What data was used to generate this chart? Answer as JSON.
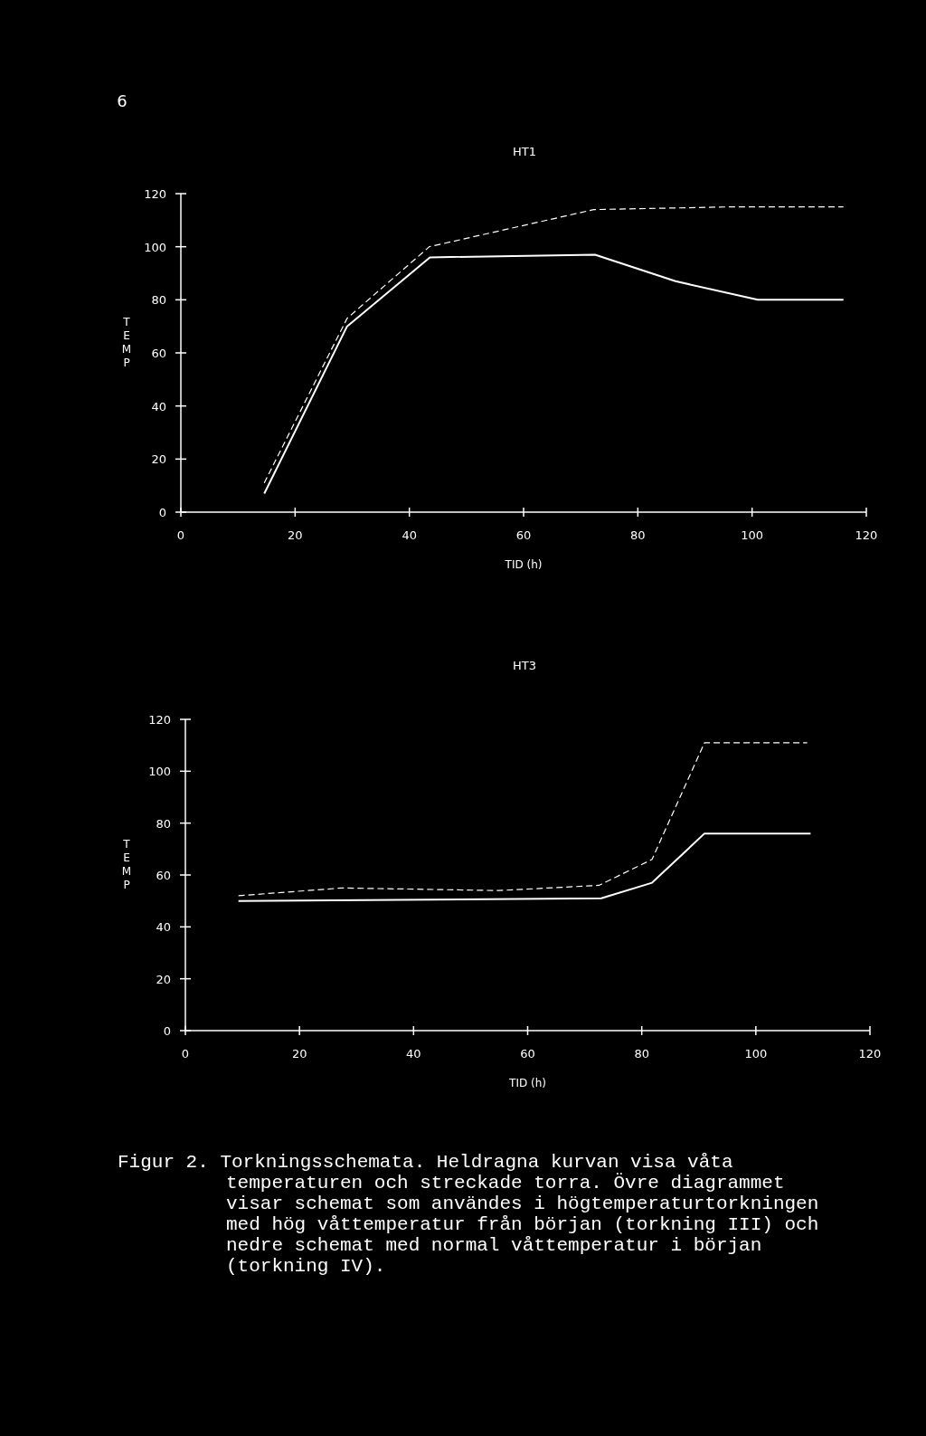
{
  "chart_data": [
    {
      "type": "line",
      "title": "HT1",
      "xlabel": "TID (h)",
      "ylabel": "TEMP",
      "xlim": [
        0,
        120
      ],
      "ylim": [
        0,
        120
      ],
      "xticks": [
        0,
        20,
        40,
        60,
        80,
        100,
        120
      ],
      "yticks": [
        0,
        20,
        40,
        60,
        80,
        100,
        120
      ],
      "annotations": [
        "6"
      ],
      "series": [
        {
          "color": "#ffffff",
          "line_style": "solid",
          "x": [
            14.6,
            29.1,
            43.6,
            72.5,
            86.6,
            101,
            116
          ],
          "values": [
            7,
            70,
            96,
            97,
            87,
            80,
            80
          ]
        },
        {
          "color": "#ffffff",
          "line_style": "dashed",
          "x": [
            14.6,
            29.1,
            43.5,
            72.3,
            96,
            116
          ],
          "values": [
            11,
            73,
            100,
            114,
            115,
            115
          ]
        }
      ]
    },
    {
      "type": "line",
      "title": "HT3",
      "xlabel": "TID (h)",
      "ylabel": "TEMP",
      "xlim": [
        0,
        120
      ],
      "ylim": [
        0,
        120
      ],
      "xticks": [
        0,
        20,
        40,
        60,
        80,
        100,
        120
      ],
      "yticks": [
        0,
        20,
        40,
        60,
        80,
        100,
        120
      ],
      "annotations": [
        "Figur 2. Torkningsschemata. Heldragna kurvan visa våta temperaturen och streckade torra. Övre diagrammet visar schemat som användes i högtemperaturtorkningen med hög våttemperatur från början (torkning III) och nedre schemat med normal våttemperatur i början (torkning IV)."
      ],
      "series": [
        {
          "color": "#ffffff",
          "line_style": "solid",
          "x": [
            9.3,
            72.9,
            81.8,
            91,
            109.6
          ],
          "values": [
            50,
            51,
            57,
            76,
            76
          ]
        },
        {
          "color": "#ffffff",
          "line_style": "dashed",
          "x": [
            9.3,
            27.5,
            54.9,
            72.5,
            81.8,
            91,
            109
          ],
          "values": [
            52,
            55,
            54,
            56,
            66,
            111,
            111
          ]
        }
      ]
    }
  ]
}
